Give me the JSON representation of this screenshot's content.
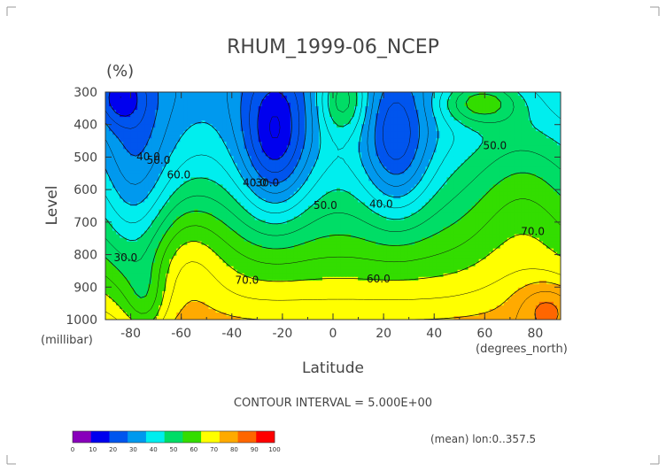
{
  "chart_data": {
    "type": "contour",
    "title": "RHUM_1999-06_NCEP",
    "units": "(%)",
    "xlabel": "Latitude",
    "ylabel": "Level",
    "x_unit_label": "(degrees_north)",
    "y_unit_label": "(millibar)",
    "x_ticks": [
      -80,
      -60,
      -40,
      -20,
      0,
      20,
      40,
      60,
      80
    ],
    "x_tick_labels": [
      "-80",
      "-60",
      "-40",
      "-20",
      "0",
      "20",
      "40",
      "60",
      "80"
    ],
    "y_ticks": [
      300,
      400,
      500,
      600,
      700,
      800,
      900,
      1000
    ],
    "y_tick_labels": [
      "300",
      "400",
      "500",
      "600",
      "700",
      "800",
      "900",
      "1000"
    ],
    "xlim": [
      -90,
      90
    ],
    "ylim": [
      300,
      1000
    ],
    "contour_interval_text": "CONTOUR INTERVAL = 5.000E+00",
    "subtitle_right": "(mean) lon:0..357.5",
    "contour_labels": [
      {
        "text": "30.0",
        "x": -82,
        "y": 820
      },
      {
        "text": "40.0",
        "x": -73,
        "y": 510
      },
      {
        "text": "50.0",
        "x": -69,
        "y": 520
      },
      {
        "text": "60.0",
        "x": -61,
        "y": 565
      },
      {
        "text": "40.0",
        "x": -31,
        "y": 590
      },
      {
        "text": "30.0",
        "x": -26,
        "y": 590
      },
      {
        "text": "50.0",
        "x": -3,
        "y": 660
      },
      {
        "text": "40.0",
        "x": 19,
        "y": 655
      },
      {
        "text": "60.0",
        "x": 18,
        "y": 885
      },
      {
        "text": "70.0",
        "x": -34,
        "y": 890
      },
      {
        "text": "50.0",
        "x": 64,
        "y": 475
      },
      {
        "text": "70.0",
        "x": 79,
        "y": 740
      }
    ],
    "colorbar": {
      "bounds": [
        0,
        10,
        20,
        30,
        40,
        50,
        60,
        70,
        80,
        90,
        100
      ],
      "labels": [
        "0",
        "10",
        "20",
        "30",
        "40",
        "50",
        "60",
        "70",
        "80",
        "90",
        "100"
      ],
      "colors": [
        "#8800bb",
        "#0000ee",
        "#0055ee",
        "#0099ee",
        "#00eeee",
        "#00dd66",
        "#33dd00",
        "#ffff00",
        "#ffaa00",
        "#ff6600",
        "#ff0000"
      ]
    },
    "grid": false,
    "legend_position": "bottom-left"
  }
}
